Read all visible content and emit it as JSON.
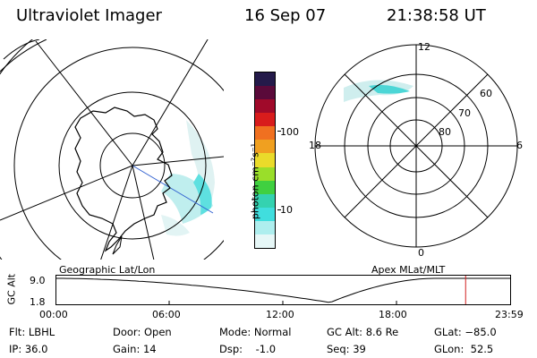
{
  "header": {
    "title": "Ultraviolet Imager",
    "date": "16 Sep 07",
    "time": "21:38:58 UT"
  },
  "left_map": {
    "caption": "Geographic Lat/Lon"
  },
  "right_map": {
    "caption": "Apex MLat/MLT",
    "mlt_labels": {
      "top": "12",
      "left": "18",
      "right": "6",
      "bottom": "0"
    },
    "lat_labels": [
      "60",
      "70",
      "80"
    ]
  },
  "colorbar": {
    "unit_label": "photon cm⁻²s⁻¹",
    "tick_100": "100",
    "tick_10": "10",
    "colors": [
      "#241a4a",
      "#5a0a3a",
      "#a00a2a",
      "#d81c1c",
      "#f07020",
      "#f0a020",
      "#eadb2a",
      "#9ade2a",
      "#40d040",
      "#34d2b0",
      "#40dede",
      "#aeeeee",
      "#e6f7f7"
    ]
  },
  "altitude_strip": {
    "axis_label": "GC Alt",
    "ymax": "9.0",
    "ymin": "1.8",
    "time_ticks": [
      "00:00",
      "06:00",
      "12:00",
      "18:00",
      "23:59"
    ],
    "current_time_hours": 21.65,
    "min_altitude_time_hours": 14.5
  },
  "status": {
    "filter": "Flt: LBHL",
    "ip": "IP: 36.0",
    "door": "Door: Open",
    "gain": "Gain: 14",
    "mode": "Mode: Normal",
    "dsp": "Dsp:    -1.0",
    "gc_alt": "GC Alt: 8.6 Re",
    "seq": "Seq: 39",
    "glat": "GLat: −85.0",
    "glon": "GLon:  52.5"
  }
}
